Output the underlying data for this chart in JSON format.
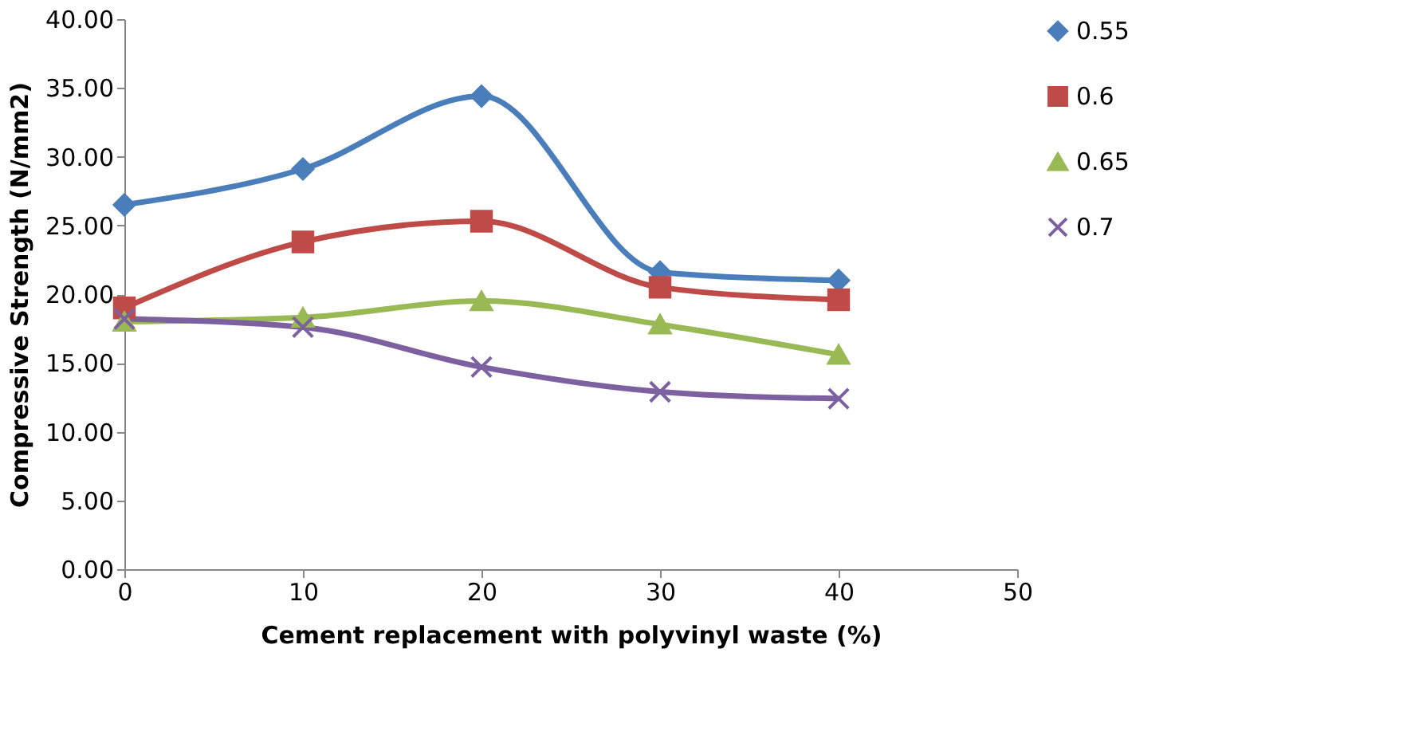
{
  "chart_data": {
    "type": "line",
    "xlabel": "Cement replacement with polyvinyl waste (%)",
    "ylabel": "Compressive Strength (N/mm2)",
    "x": [
      0,
      10,
      20,
      30,
      40
    ],
    "series": [
      {
        "name": "0.55",
        "color": "#4a7ebb",
        "marker": "diamond",
        "values": [
          26.5,
          29.1,
          34.4,
          21.6,
          21.0
        ]
      },
      {
        "name": "0.6",
        "color": "#be4b48",
        "marker": "square",
        "values": [
          19.0,
          23.8,
          25.3,
          20.5,
          19.6
        ]
      },
      {
        "name": "0.65",
        "color": "#98b954",
        "marker": "triangle",
        "values": [
          18.0,
          18.3,
          19.5,
          17.8,
          15.6
        ]
      },
      {
        "name": "0.7",
        "color": "#7d60a0",
        "marker": "cross",
        "values": [
          18.2,
          17.6,
          14.7,
          12.9,
          12.4
        ]
      }
    ],
    "xlim": [
      0,
      50
    ],
    "xticks": [
      0,
      10,
      20,
      30,
      40,
      50
    ],
    "ylim": [
      0,
      40
    ],
    "yticks": [
      {
        "value": 0,
        "label": "0.00"
      },
      {
        "value": 5,
        "label": "5.00"
      },
      {
        "value": 10,
        "label": "10.00"
      },
      {
        "value": 15,
        "label": "15.00"
      },
      {
        "value": 20,
        "label": "20.00"
      },
      {
        "value": 25,
        "label": "25.00"
      },
      {
        "value": 30,
        "label": "30.00"
      },
      {
        "value": 35,
        "label": "35.00"
      },
      {
        "value": 40,
        "label": "40.00"
      }
    ],
    "grid": false,
    "legend": "right",
    "line_style": "solid"
  }
}
